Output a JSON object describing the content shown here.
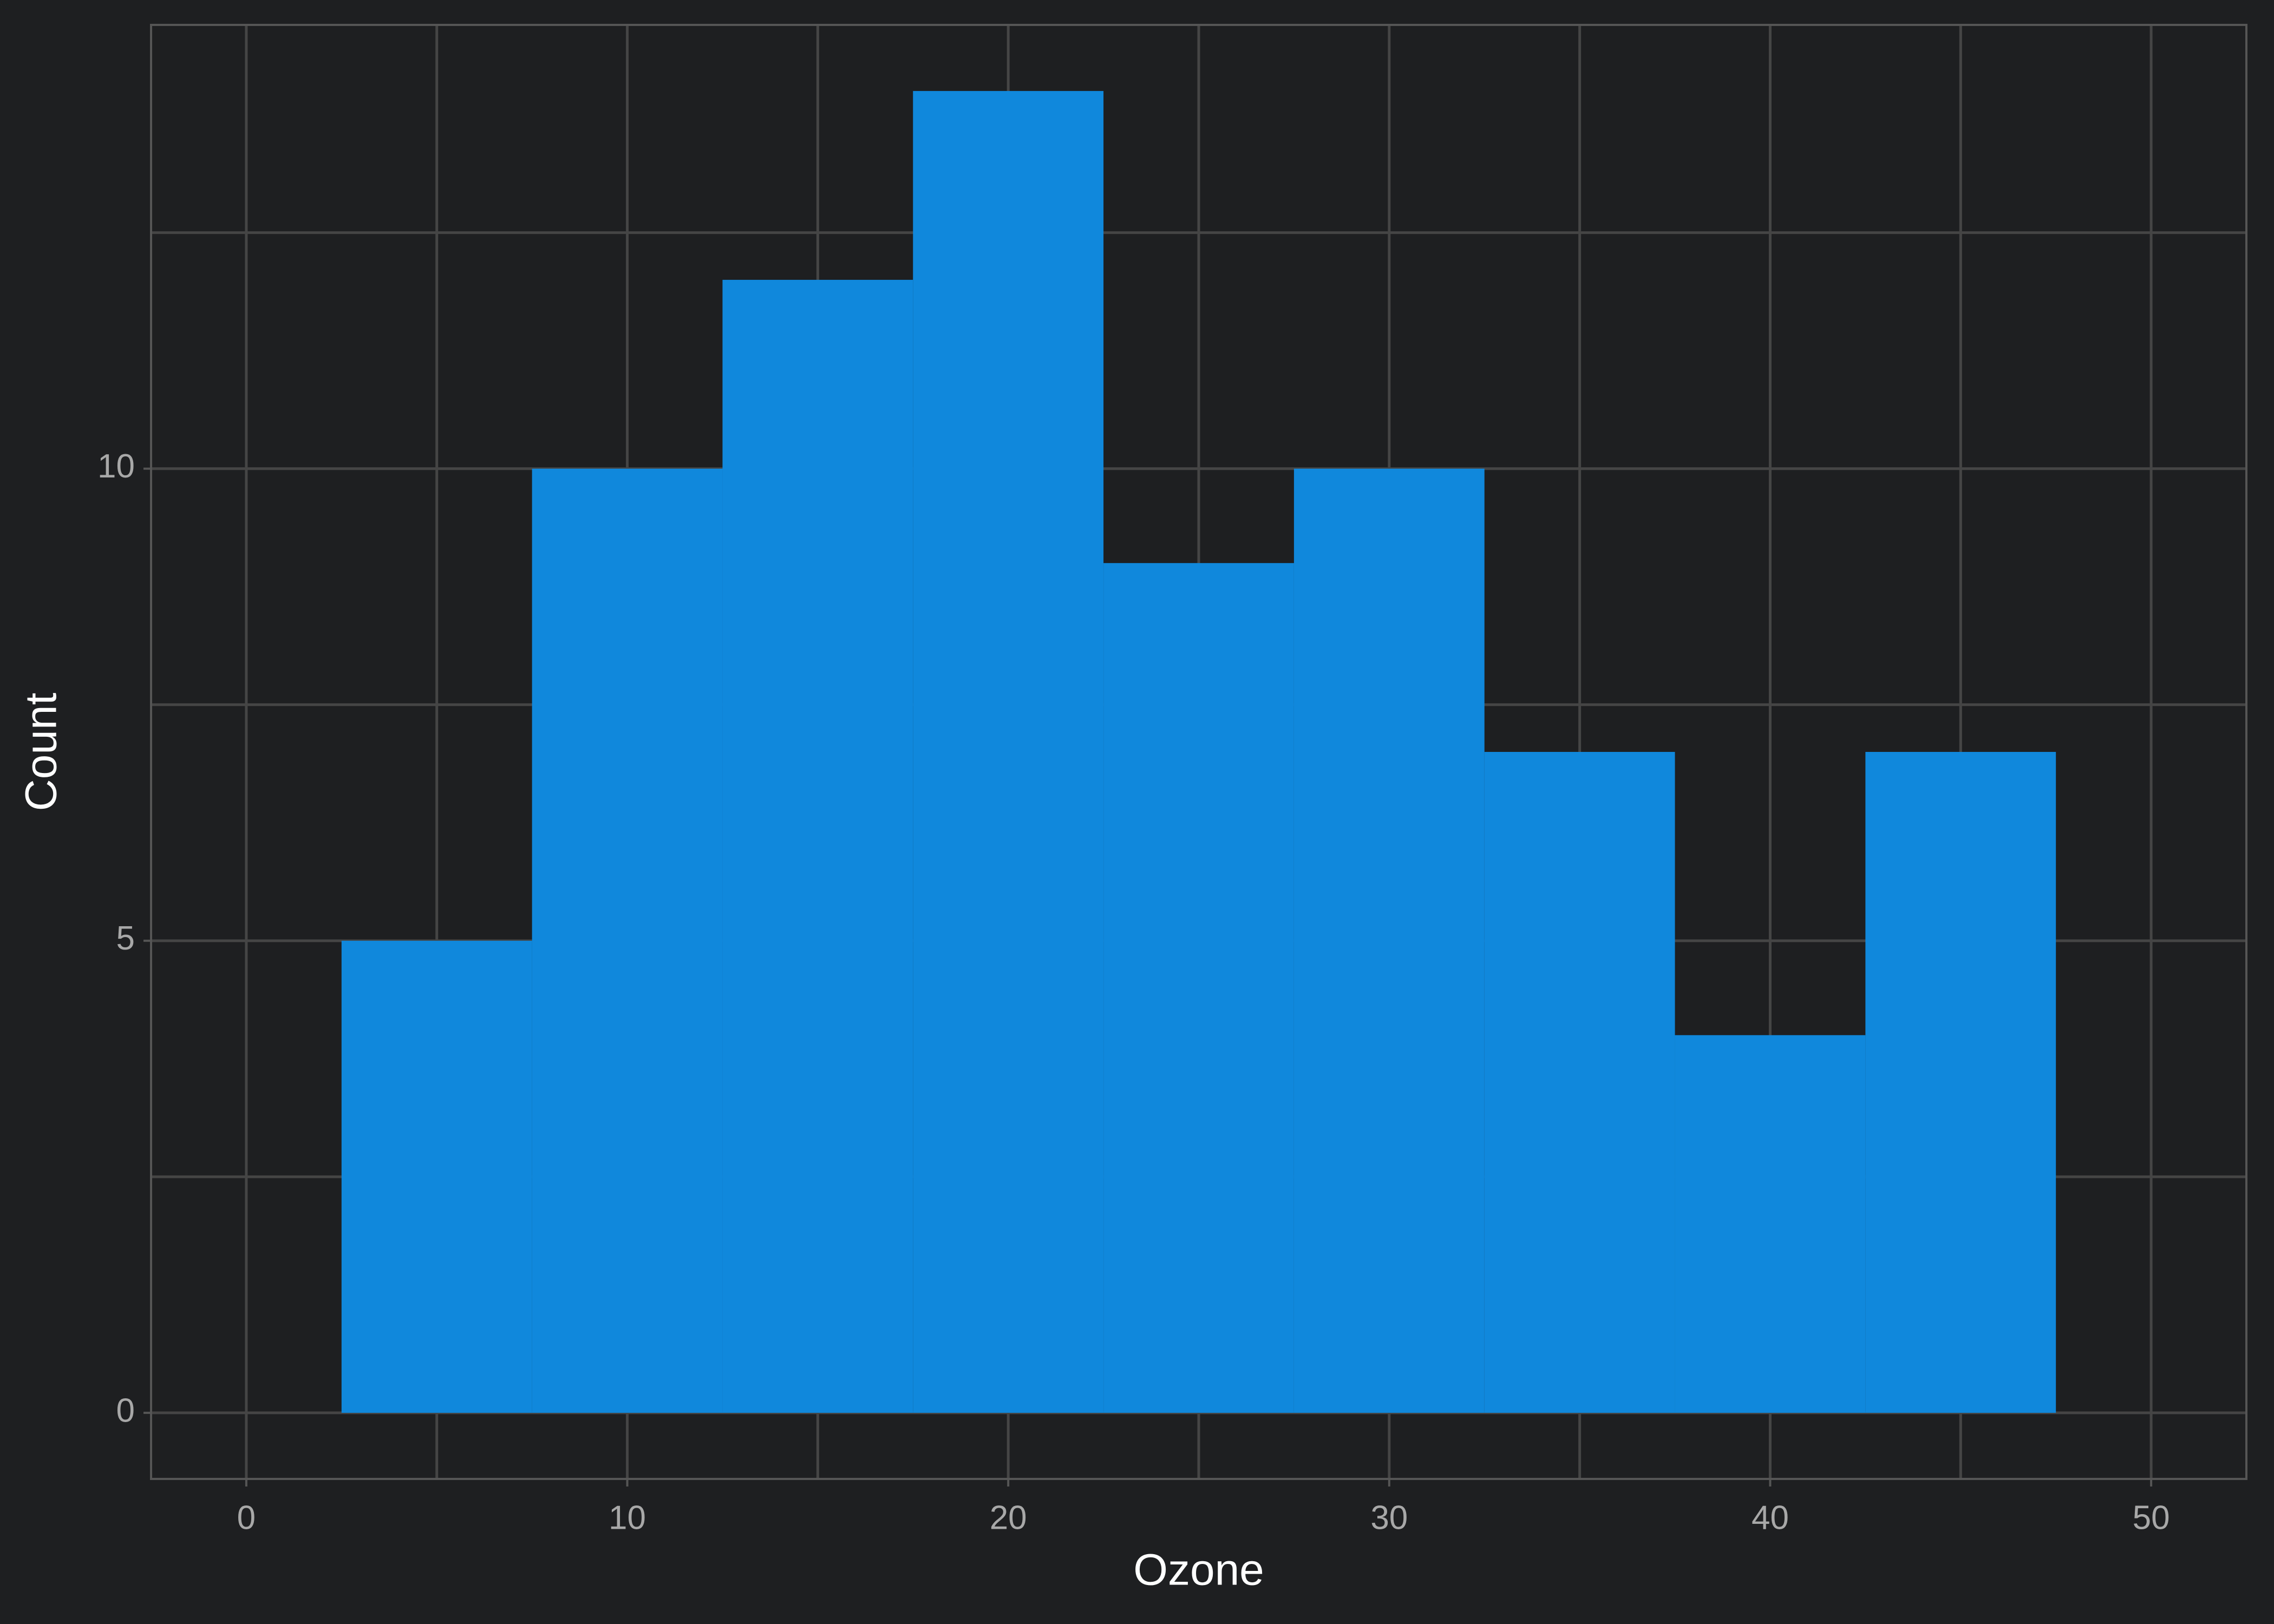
{
  "chart_data": {
    "type": "histogram",
    "x_label": "Ozone",
    "y_label": "Count",
    "bins": [
      2.5,
      7.5,
      12.5,
      17.5,
      22.5,
      27.5,
      32.5,
      37.5,
      42.5,
      47.5
    ],
    "values": [
      5,
      10,
      12,
      14,
      9,
      10,
      7,
      4,
      7
    ],
    "color": "#1088dc",
    "xlim": [
      -2.5,
      52.5
    ],
    "xticks": [
      0,
      10,
      20,
      30,
      40,
      50
    ],
    "xminorticks": [
      5,
      15,
      25,
      35,
      45
    ],
    "ylim": [
      -0.7,
      14.7
    ],
    "yticks": [
      0,
      5,
      10
    ],
    "yminorticks": [
      2.5,
      7.5,
      12.5
    ],
    "grid": true
  }
}
